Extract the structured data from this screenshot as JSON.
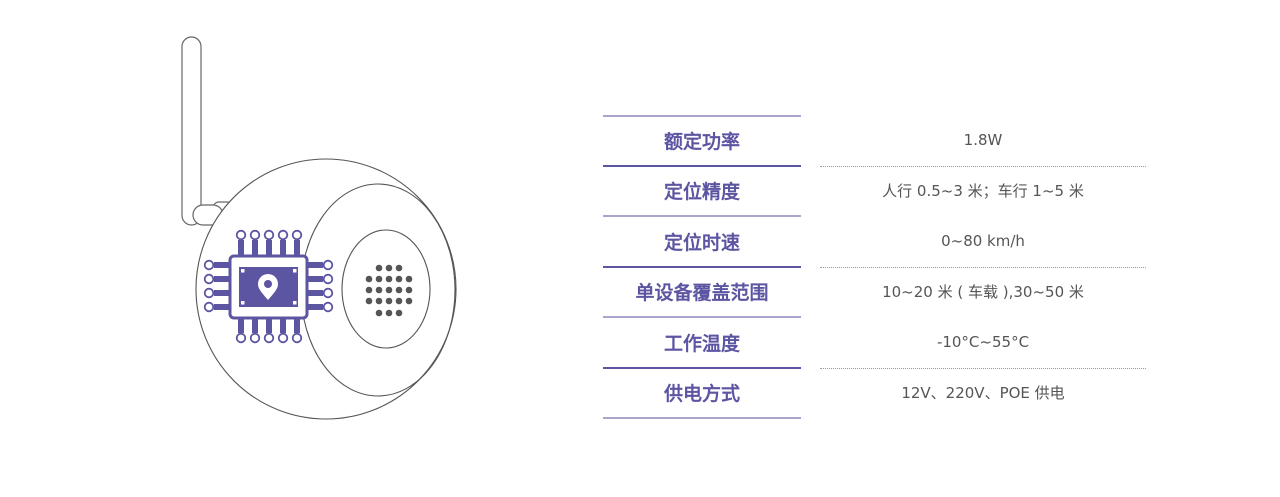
{
  "colors": {
    "accent": "#5c55a2",
    "accent_light": "#aaa5cf",
    "value_text": "#555555",
    "outline": "#555555"
  },
  "illustration": {
    "icons": [
      "antenna-icon",
      "chip-icon",
      "location-pin-icon",
      "speaker-grille-icon"
    ]
  },
  "specs": [
    {
      "label": "额定功率",
      "value": "1.8W"
    },
    {
      "label": "定位精度",
      "value": "人行 0.5~3 米；车行 1~5 米"
    },
    {
      "label": "定位时速",
      "value": "0~80 km/h"
    },
    {
      "label": "单设备覆盖范围",
      "value": "10~20 米 ( 车载 ),30~50 米"
    },
    {
      "label": "工作温度",
      "value": "-10°C~55°C"
    },
    {
      "label": "供电方式",
      "value": "12V、220V、POE 供电"
    }
  ]
}
